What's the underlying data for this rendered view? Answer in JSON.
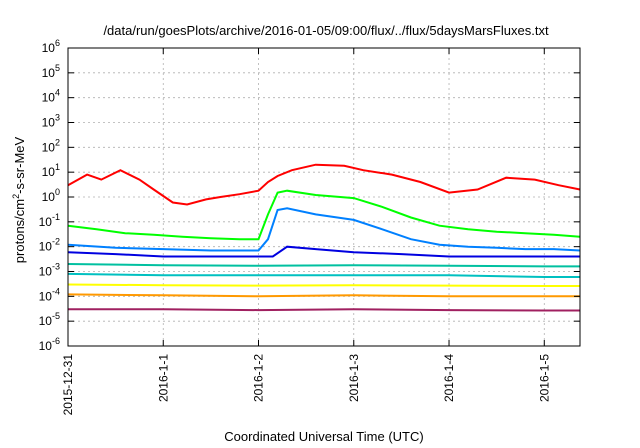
{
  "chart_data": {
    "type": "line",
    "title": "/data/run/goesPlots/archive/2016-01-05/09:00/flux/../flux/5daysMarsFluxes.txt",
    "xlabel": "Coordinated Universal Time (UTC)",
    "ylabel": {
      "base": "protons/cm",
      "sup": "2",
      "rest": "-s-sr-MeV"
    },
    "yscale": "log",
    "ylim_exp": [
      -6,
      6
    ],
    "xlim": [
      "2015-12-31 00:00",
      "2016-01-05 09:00"
    ],
    "x_ticks": [
      "2015-12-31",
      "2016-1-1",
      "2016-1-2",
      "2016-1-3",
      "2016-1-4",
      "2016-1-5"
    ],
    "y_ticks": [
      {
        "base": "10",
        "exp": "-6"
      },
      {
        "base": "10",
        "exp": "-5"
      },
      {
        "base": "10",
        "exp": "-4"
      },
      {
        "base": "10",
        "exp": "-3"
      },
      {
        "base": "10",
        "exp": "-2"
      },
      {
        "base": "10",
        "exp": "-1"
      },
      {
        "base": "10",
        "exp": "0"
      },
      {
        "base": "10",
        "exp": "1"
      },
      {
        "base": "10",
        "exp": "2"
      },
      {
        "base": "10",
        "exp": "3"
      },
      {
        "base": "10",
        "exp": "4"
      },
      {
        "base": "10",
        "exp": "5"
      },
      {
        "base": "10",
        "exp": "6"
      }
    ],
    "grid": true,
    "colors": [
      "#ff0000",
      "#00ff00",
      "#0080ff",
      "#0000e0",
      "#00c0a0",
      "#00c0c0",
      "#ffff00",
      "#ff9900",
      "#a02060"
    ],
    "series": [
      {
        "color": "#ff0000",
        "x_days": [
          0,
          0.2,
          0.35,
          0.55,
          0.75,
          0.9,
          1.1,
          1.25,
          1.45,
          1.6,
          1.8,
          2.0,
          2.1,
          2.2,
          2.35,
          2.6,
          2.9,
          3.1,
          3.4,
          3.7,
          4.0,
          4.3,
          4.6,
          4.9,
          5.15,
          5.375
        ],
        "y": [
          3,
          8,
          5,
          12,
          5,
          2,
          0.6,
          0.5,
          0.8,
          1,
          1.3,
          1.8,
          4,
          7,
          12,
          20,
          18,
          12,
          8,
          4,
          1.5,
          2,
          6,
          5,
          3,
          2
        ]
      },
      {
        "color": "#00ff00",
        "x_days": [
          0,
          0.3,
          0.6,
          0.9,
          1.2,
          1.5,
          1.8,
          2.0,
          2.1,
          2.2,
          2.3,
          2.6,
          3.0,
          3.3,
          3.6,
          3.9,
          4.2,
          4.5,
          4.8,
          5.1,
          5.375
        ],
        "y": [
          0.07,
          0.05,
          0.035,
          0.03,
          0.025,
          0.022,
          0.02,
          0.02,
          0.2,
          1.5,
          1.8,
          1.2,
          0.9,
          0.4,
          0.15,
          0.07,
          0.05,
          0.04,
          0.035,
          0.03,
          0.025
        ]
      },
      {
        "color": "#0080ff",
        "x_days": [
          0,
          0.5,
          1.0,
          1.5,
          2.0,
          2.1,
          2.2,
          2.3,
          2.6,
          3.0,
          3.3,
          3.6,
          3.9,
          4.2,
          4.5,
          4.8,
          5.1,
          5.375
        ],
        "y": [
          0.012,
          0.009,
          0.008,
          0.007,
          0.007,
          0.02,
          0.3,
          0.35,
          0.2,
          0.12,
          0.05,
          0.02,
          0.012,
          0.01,
          0.009,
          0.008,
          0.008,
          0.007
        ]
      },
      {
        "color": "#0000e0",
        "x_days": [
          0,
          0.5,
          1.0,
          1.5,
          2.0,
          2.15,
          2.3,
          2.6,
          3.0,
          3.5,
          4.0,
          4.5,
          5.0,
          5.375
        ],
        "y": [
          0.006,
          0.005,
          0.004,
          0.004,
          0.004,
          0.004,
          0.01,
          0.008,
          0.006,
          0.005,
          0.004,
          0.004,
          0.004,
          0.004
        ]
      },
      {
        "color": "#00c0a0",
        "x_days": [
          0,
          1.0,
          2.0,
          3.0,
          4.0,
          5.0,
          5.375
        ],
        "y": [
          0.002,
          0.0018,
          0.0017,
          0.0018,
          0.0017,
          0.0016,
          0.0016
        ]
      },
      {
        "color": "#00c0c0",
        "x_days": [
          0,
          1.0,
          2.0,
          3.0,
          4.0,
          5.0,
          5.375
        ],
        "y": [
          0.0008,
          0.0007,
          0.0007,
          0.0007,
          0.0007,
          0.0006,
          0.0006
        ]
      },
      {
        "color": "#ffff00",
        "x_days": [
          0,
          1.0,
          2.0,
          3.0,
          4.0,
          5.0,
          5.375
        ],
        "y": [
          0.0003,
          0.00028,
          0.00027,
          0.00028,
          0.00027,
          0.00026,
          0.00026
        ]
      },
      {
        "color": "#ff9900",
        "x_days": [
          0,
          1.0,
          2.0,
          3.0,
          4.0,
          5.0,
          5.375
        ],
        "y": [
          0.00012,
          0.00011,
          0.0001,
          0.00011,
          0.0001,
          0.0001,
          0.0001
        ]
      },
      {
        "color": "#a02060",
        "x_days": [
          0,
          1.0,
          2.0,
          3.0,
          4.0,
          5.0,
          5.375
        ],
        "y": [
          3e-05,
          3e-05,
          2.8e-05,
          3e-05,
          2.8e-05,
          2.7e-05,
          2.7e-05
        ]
      }
    ]
  }
}
